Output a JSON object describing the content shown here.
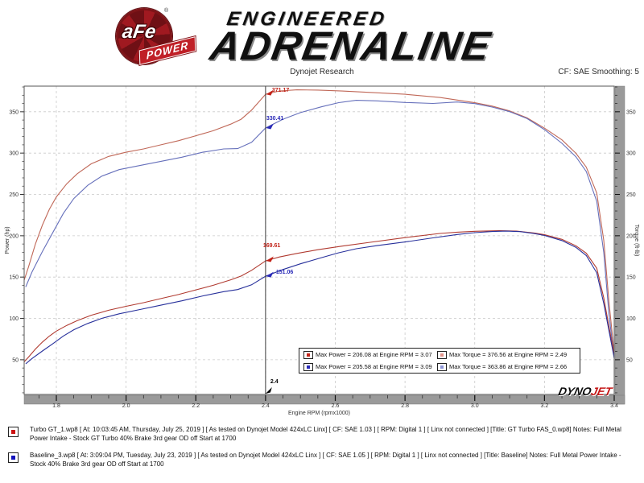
{
  "header": {
    "logo_afe": "aFe",
    "logo_reg": "®",
    "logo_power": "POWER",
    "brand_line1": "ENGINEERED",
    "brand_line2": "ADRENALINE",
    "chart_title": "Dynojet Research",
    "smoothing": "CF: SAE Smoothing: 5"
  },
  "chart_data": {
    "type": "line",
    "title": "Dynojet Research",
    "xlabel": "Engine RPM (rpmx1000)",
    "ylabel_left": "Power (hp)",
    "ylabel_right": "Torque (ft-lb)",
    "xlim": [
      1.708,
      3.4
    ],
    "ylim": [
      8,
      381
    ],
    "x_ticks": [
      1.8,
      2.0,
      2.2,
      2.4,
      2.6,
      2.8,
      3.0,
      3.2,
      3.4
    ],
    "x_minor_step": 0.05,
    "y_ticks": [
      50,
      100,
      150,
      200,
      250,
      300,
      350
    ],
    "y_minor_step": 10,
    "grid": true,
    "cursor": {
      "rpm": 2.4,
      "label": "2.4"
    },
    "series": [
      {
        "name": "Turbo GT Torque",
        "axis": "torque",
        "color": "#c06858",
        "points": [
          [
            1.705,
            143
          ],
          [
            1.72,
            162
          ],
          [
            1.74,
            190
          ],
          [
            1.76,
            213
          ],
          [
            1.78,
            232
          ],
          [
            1.8,
            247
          ],
          [
            1.83,
            263
          ],
          [
            1.86,
            275
          ],
          [
            1.9,
            287
          ],
          [
            1.95,
            296
          ],
          [
            2.0,
            301
          ],
          [
            2.05,
            305
          ],
          [
            2.1,
            310
          ],
          [
            2.15,
            315
          ],
          [
            2.2,
            321
          ],
          [
            2.25,
            327
          ],
          [
            2.3,
            335
          ],
          [
            2.33,
            341
          ],
          [
            2.36,
            352
          ],
          [
            2.4,
            371.2
          ],
          [
            2.44,
            375.2
          ],
          [
            2.49,
            376.56
          ],
          [
            2.55,
            376.2
          ],
          [
            2.62,
            375.1
          ],
          [
            2.7,
            373.4
          ],
          [
            2.8,
            371.2
          ],
          [
            2.9,
            367.3
          ],
          [
            3.0,
            360.9
          ],
          [
            3.05,
            356.8
          ],
          [
            3.1,
            351.0
          ],
          [
            3.15,
            342.6
          ],
          [
            3.2,
            330.2
          ],
          [
            3.25,
            316.0
          ],
          [
            3.29,
            299.8
          ],
          [
            3.32,
            283.0
          ],
          [
            3.35,
            251.7
          ],
          [
            3.37,
            194.6
          ],
          [
            3.385,
            119.6
          ],
          [
            3.4,
            57.9
          ]
        ]
      },
      {
        "name": "Baseline Torque",
        "axis": "torque",
        "color": "#6670bb",
        "points": [
          [
            1.712,
            138
          ],
          [
            1.73,
            156
          ],
          [
            1.76,
            181
          ],
          [
            1.79,
            204
          ],
          [
            1.82,
            227
          ],
          [
            1.85,
            245
          ],
          [
            1.89,
            261
          ],
          [
            1.93,
            272
          ],
          [
            1.98,
            280
          ],
          [
            2.04,
            285
          ],
          [
            2.1,
            290
          ],
          [
            2.16,
            295
          ],
          [
            2.22,
            301
          ],
          [
            2.28,
            305
          ],
          [
            2.32,
            305.4
          ],
          [
            2.36,
            313
          ],
          [
            2.4,
            330.4
          ],
          [
            2.45,
            341
          ],
          [
            2.5,
            349
          ],
          [
            2.56,
            356
          ],
          [
            2.61,
            361
          ],
          [
            2.66,
            363.86
          ],
          [
            2.72,
            363.2
          ],
          [
            2.8,
            361.2
          ],
          [
            2.88,
            360.1
          ],
          [
            2.95,
            361.8
          ],
          [
            3.0,
            359.9
          ],
          [
            3.05,
            355.7
          ],
          [
            3.1,
            350.1
          ],
          [
            3.15,
            341.8
          ],
          [
            3.2,
            328.4
          ],
          [
            3.25,
            311.9
          ],
          [
            3.29,
            295.6
          ],
          [
            3.32,
            277.7
          ],
          [
            3.35,
            241.6
          ],
          [
            3.37,
            179.8
          ],
          [
            3.385,
            104.7
          ],
          [
            3.4,
            51.8
          ]
        ]
      },
      {
        "name": "Turbo GT Power",
        "axis": "power",
        "color": "#b03a30",
        "points": [
          [
            1.705,
            46.4
          ],
          [
            1.72,
            53.1
          ],
          [
            1.74,
            62.9
          ],
          [
            1.76,
            71.4
          ],
          [
            1.78,
            78.6
          ],
          [
            1.8,
            84.6
          ],
          [
            1.83,
            91.6
          ],
          [
            1.86,
            97.4
          ],
          [
            1.9,
            103.8
          ],
          [
            1.95,
            109.9
          ],
          [
            2.0,
            114.6
          ],
          [
            2.05,
            119.0
          ],
          [
            2.1,
            124.0
          ],
          [
            2.15,
            128.9
          ],
          [
            2.2,
            134.5
          ],
          [
            2.25,
            140.1
          ],
          [
            2.3,
            146.7
          ],
          [
            2.33,
            151.3
          ],
          [
            2.36,
            158.2
          ],
          [
            2.4,
            169.6
          ],
          [
            2.44,
            174.3
          ],
          [
            2.49,
            178.6
          ],
          [
            2.55,
            183.1
          ],
          [
            2.62,
            187.5
          ],
          [
            2.7,
            192.1
          ],
          [
            2.8,
            197.7
          ],
          [
            2.9,
            202.8
          ],
          [
            2.95,
            204.3
          ],
          [
            3.0,
            205.4
          ],
          [
            3.07,
            206.08
          ],
          [
            3.12,
            205.6
          ],
          [
            3.17,
            203.4
          ],
          [
            3.2,
            201.2
          ],
          [
            3.25,
            195.7
          ],
          [
            3.29,
            187.9
          ],
          [
            3.32,
            178.9
          ],
          [
            3.35,
            160.7
          ],
          [
            3.37,
            124.9
          ],
          [
            3.385,
            90.0
          ],
          [
            3.4,
            56.0
          ]
        ]
      },
      {
        "name": "Baseline Power",
        "axis": "power",
        "color": "#27309b",
        "points": [
          [
            1.712,
            45.0
          ],
          [
            1.73,
            51.4
          ],
          [
            1.76,
            60.6
          ],
          [
            1.79,
            69.5
          ],
          [
            1.82,
            78.7
          ],
          [
            1.85,
            86.3
          ],
          [
            1.89,
            93.9
          ],
          [
            1.93,
            100.0
          ],
          [
            1.98,
            105.6
          ],
          [
            2.04,
            110.7
          ],
          [
            2.1,
            116.0
          ],
          [
            2.16,
            121.3
          ],
          [
            2.22,
            127.2
          ],
          [
            2.28,
            132.4
          ],
          [
            2.32,
            134.9
          ],
          [
            2.36,
            140.6
          ],
          [
            2.4,
            151.1
          ],
          [
            2.45,
            159.1
          ],
          [
            2.5,
            166.1
          ],
          [
            2.56,
            173.5
          ],
          [
            2.61,
            179.4
          ],
          [
            2.66,
            184.3
          ],
          [
            2.72,
            188.1
          ],
          [
            2.8,
            192.5
          ],
          [
            2.88,
            197.4
          ],
          [
            2.95,
            201.5
          ],
          [
            3.0,
            203.8
          ],
          [
            3.05,
            205.1
          ],
          [
            3.09,
            205.58
          ],
          [
            3.13,
            205.0
          ],
          [
            3.17,
            202.7
          ],
          [
            3.2,
            200.3
          ],
          [
            3.25,
            194.2
          ],
          [
            3.29,
            186.0
          ],
          [
            3.32,
            176.1
          ],
          [
            3.35,
            155.2
          ],
          [
            3.37,
            118.1
          ],
          [
            3.385,
            85.0
          ],
          [
            3.4,
            52.0
          ]
        ]
      }
    ],
    "cursor_annotations": [
      {
        "label": "371.17",
        "rpm": 2.4,
        "value": 371.17,
        "color": "#c22218",
        "label_offset": [
          8,
          -8
        ]
      },
      {
        "label": "330.41",
        "rpm": 2.4,
        "value": 330.41,
        "color": "#2a2ab8",
        "label_offset": [
          1,
          -15
        ]
      },
      {
        "label": "169.61",
        "rpm": 2.4,
        "value": 169.61,
        "color": "#c22218",
        "label_offset": [
          -3,
          -22
        ]
      },
      {
        "label": "151.06",
        "rpm": 2.4,
        "value": 151.06,
        "color": "#2a2ab8",
        "label_offset": [
          13,
          -8
        ]
      }
    ],
    "legend_position": "bottom-center"
  },
  "legend": {
    "entries": [
      {
        "text": "Max Power = 206.08 at Engine RPM = 3.07",
        "color": "#c22218"
      },
      {
        "text": "Max Torque = 376.56 at Engine RPM = 2.49",
        "color": "#e2938a"
      },
      {
        "text": "Max Power = 205.58 at Engine RPM = 3.09",
        "color": "#2a2ab8"
      },
      {
        "text": "Max Torque = 363.86 at Engine RPM = 2.66",
        "color": "#8f97d8"
      }
    ]
  },
  "dynojet": {
    "dyno": "DYNO",
    "jet": "JET"
  },
  "runs": [
    {
      "color": "#cc1111",
      "text": "Turbo GT_1.wp8 [ At: 10:03:45 AM, Thursday, July 25, 2019 ] [ As tested on Dynojet Model 424xLC Linx] [ CF: SAE 1.03 ] [ RPM: Digital 1 ] [ Linx not connected ] [Title: GT Turbo FAS_0.wp8] Notes: Full Metal Power Intake - Stock GT Turbo 40% Brake 3rd gear OD off Start at 1700"
    },
    {
      "color": "#1111bb",
      "text": "Baseline_3.wp8 [ At: 3:09:04 PM, Tuesday, July 23, 2019 ] [ As tested on Dynojet Model 424xLC Linx ] [ CF: SAE 1.05 ] [ RPM: Digital 1 ] [ Linx not connected ] [Title: Baseline] Notes: Full Metal Power Intake - Stock 40% Brake 3rd gear OD off Start at 1700"
    }
  ]
}
